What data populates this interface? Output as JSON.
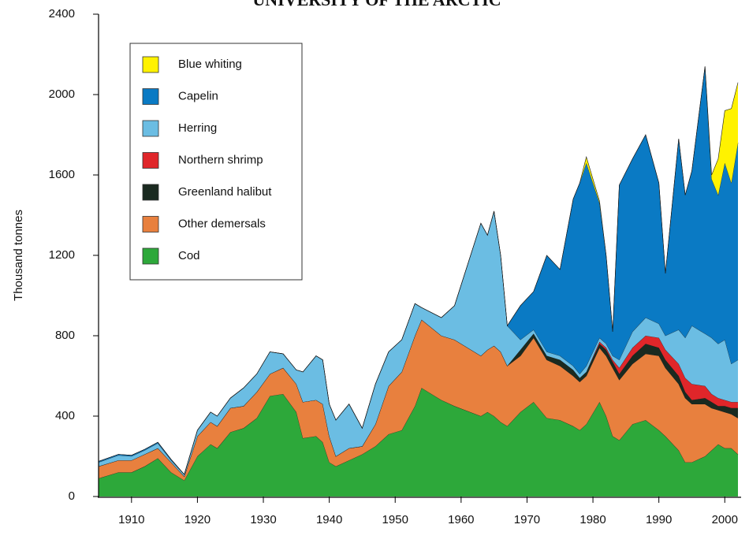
{
  "chart_data": {
    "type": "stacked_area",
    "title": "UNIVERSITY OF THE ARCTIC",
    "y_label": "Thousand tonnes",
    "x": [
      1905,
      1908,
      1910,
      1912,
      1914,
      1916,
      1918,
      1920,
      1922,
      1923,
      1925,
      1927,
      1929,
      1931,
      1933,
      1935,
      1936,
      1938,
      1939,
      1940,
      1941,
      1943,
      1945,
      1947,
      1949,
      1951,
      1953,
      1954,
      1957,
      1959,
      1963,
      1964,
      1965,
      1966,
      1967,
      1969,
      1971,
      1973,
      1975,
      1977,
      1978,
      1979,
      1981,
      1982,
      1983,
      1984,
      1986,
      1988,
      1990,
      1991,
      1993,
      1994,
      1995,
      1997,
      1998,
      1999,
      2000,
      2001,
      2002
    ],
    "series": [
      {
        "name": "Cod",
        "color": "#2da83a",
        "values": [
          90,
          120,
          120,
          150,
          190,
          120,
          80,
          200,
          260,
          240,
          320,
          340,
          390,
          500,
          510,
          420,
          290,
          300,
          270,
          170,
          150,
          180,
          210,
          250,
          310,
          330,
          450,
          540,
          480,
          450,
          400,
          420,
          400,
          370,
          350,
          420,
          470,
          390,
          380,
          350,
          330,
          360,
          470,
          400,
          300,
          280,
          360,
          380,
          330,
          300,
          230,
          170,
          170,
          200,
          230,
          260,
          240,
          240,
          210
        ]
      },
      {
        "name": "Other demersals",
        "color": "#e8803e",
        "values": [
          60,
          60,
          60,
          60,
          50,
          50,
          20,
          100,
          110,
          110,
          120,
          110,
          130,
          110,
          130,
          140,
          180,
          180,
          190,
          130,
          50,
          60,
          40,
          110,
          240,
          290,
          350,
          340,
          320,
          330,
          300,
          310,
          350,
          350,
          300,
          280,
          320,
          290,
          270,
          250,
          240,
          240,
          270,
          300,
          340,
          300,
          300,
          330,
          370,
          340,
          330,
          320,
          290,
          260,
          210,
          170,
          180,
          170,
          180
        ]
      },
      {
        "name": "Greenland halibut",
        "color": "#1a2a20",
        "values": [
          0,
          0,
          0,
          0,
          0,
          0,
          0,
          0,
          0,
          0,
          0,
          0,
          0,
          0,
          0,
          0,
          0,
          0,
          0,
          0,
          0,
          0,
          0,
          0,
          0,
          0,
          0,
          0,
          0,
          0,
          0,
          0,
          0,
          0,
          0,
          30,
          20,
          20,
          30,
          30,
          20,
          20,
          20,
          30,
          30,
          30,
          40,
          50,
          40,
          40,
          40,
          30,
          20,
          30,
          30,
          20,
          30,
          30,
          50
        ]
      },
      {
        "name": "Northern shrimp",
        "color": "#e0262a",
        "values": [
          0,
          0,
          0,
          0,
          0,
          0,
          0,
          0,
          0,
          0,
          0,
          0,
          0,
          0,
          0,
          0,
          0,
          0,
          0,
          0,
          0,
          0,
          0,
          0,
          0,
          0,
          0,
          0,
          0,
          0,
          0,
          0,
          0,
          0,
          0,
          0,
          0,
          0,
          0,
          0,
          0,
          0,
          10,
          10,
          10,
          30,
          40,
          40,
          50,
          50,
          60,
          70,
          80,
          60,
          40,
          40,
          30,
          30,
          30
        ]
      },
      {
        "name": "Herring",
        "color": "#6bbde3",
        "values": [
          20,
          25,
          20,
          20,
          25,
          10,
          10,
          30,
          50,
          50,
          50,
          90,
          90,
          110,
          70,
          70,
          150,
          220,
          220,
          160,
          180,
          220,
          90,
          200,
          170,
          160,
          160,
          60,
          90,
          170,
          660,
          570,
          670,
          480,
          200,
          50,
          20,
          20,
          20,
          20,
          20,
          30,
          20,
          20,
          20,
          40,
          80,
          90,
          70,
          70,
          170,
          200,
          290,
          260,
          280,
          270,
          300,
          190,
          210
        ]
      },
      {
        "name": "Capelin",
        "color": "#0a7ac4",
        "values": [
          5,
          5,
          5,
          5,
          5,
          5,
          0,
          0,
          0,
          0,
          0,
          0,
          0,
          0,
          0,
          0,
          0,
          0,
          0,
          0,
          0,
          0,
          0,
          0,
          0,
          0,
          0,
          0,
          0,
          0,
          0,
          0,
          0,
          0,
          0,
          170,
          190,
          480,
          430,
          830,
          950,
          1010,
          670,
          440,
          120,
          870,
          860,
          910,
          700,
          310,
          950,
          710,
          770,
          1330,
          790,
          740,
          880,
          900,
          1080
        ]
      },
      {
        "name": "Blue whiting",
        "color": "#fff200",
        "values": [
          0,
          0,
          0,
          0,
          0,
          0,
          0,
          0,
          0,
          0,
          0,
          0,
          0,
          0,
          0,
          0,
          0,
          0,
          0,
          0,
          0,
          0,
          0,
          0,
          0,
          0,
          0,
          0,
          0,
          0,
          0,
          0,
          0,
          0,
          0,
          0,
          0,
          0,
          0,
          0,
          0,
          30,
          10,
          0,
          0,
          0,
          0,
          0,
          0,
          0,
          0,
          0,
          0,
          0,
          20,
          180,
          260,
          370,
          300
        ]
      }
    ],
    "xlim": [
      1905,
      2002
    ],
    "xticks": [
      1910,
      1920,
      1930,
      1940,
      1950,
      1960,
      1970,
      1980,
      1990,
      2000
    ],
    "ylim": [
      0,
      2400
    ],
    "yticks": [
      0,
      400,
      800,
      1200,
      1600,
      2000,
      2400
    ],
    "legend": "upper left"
  }
}
